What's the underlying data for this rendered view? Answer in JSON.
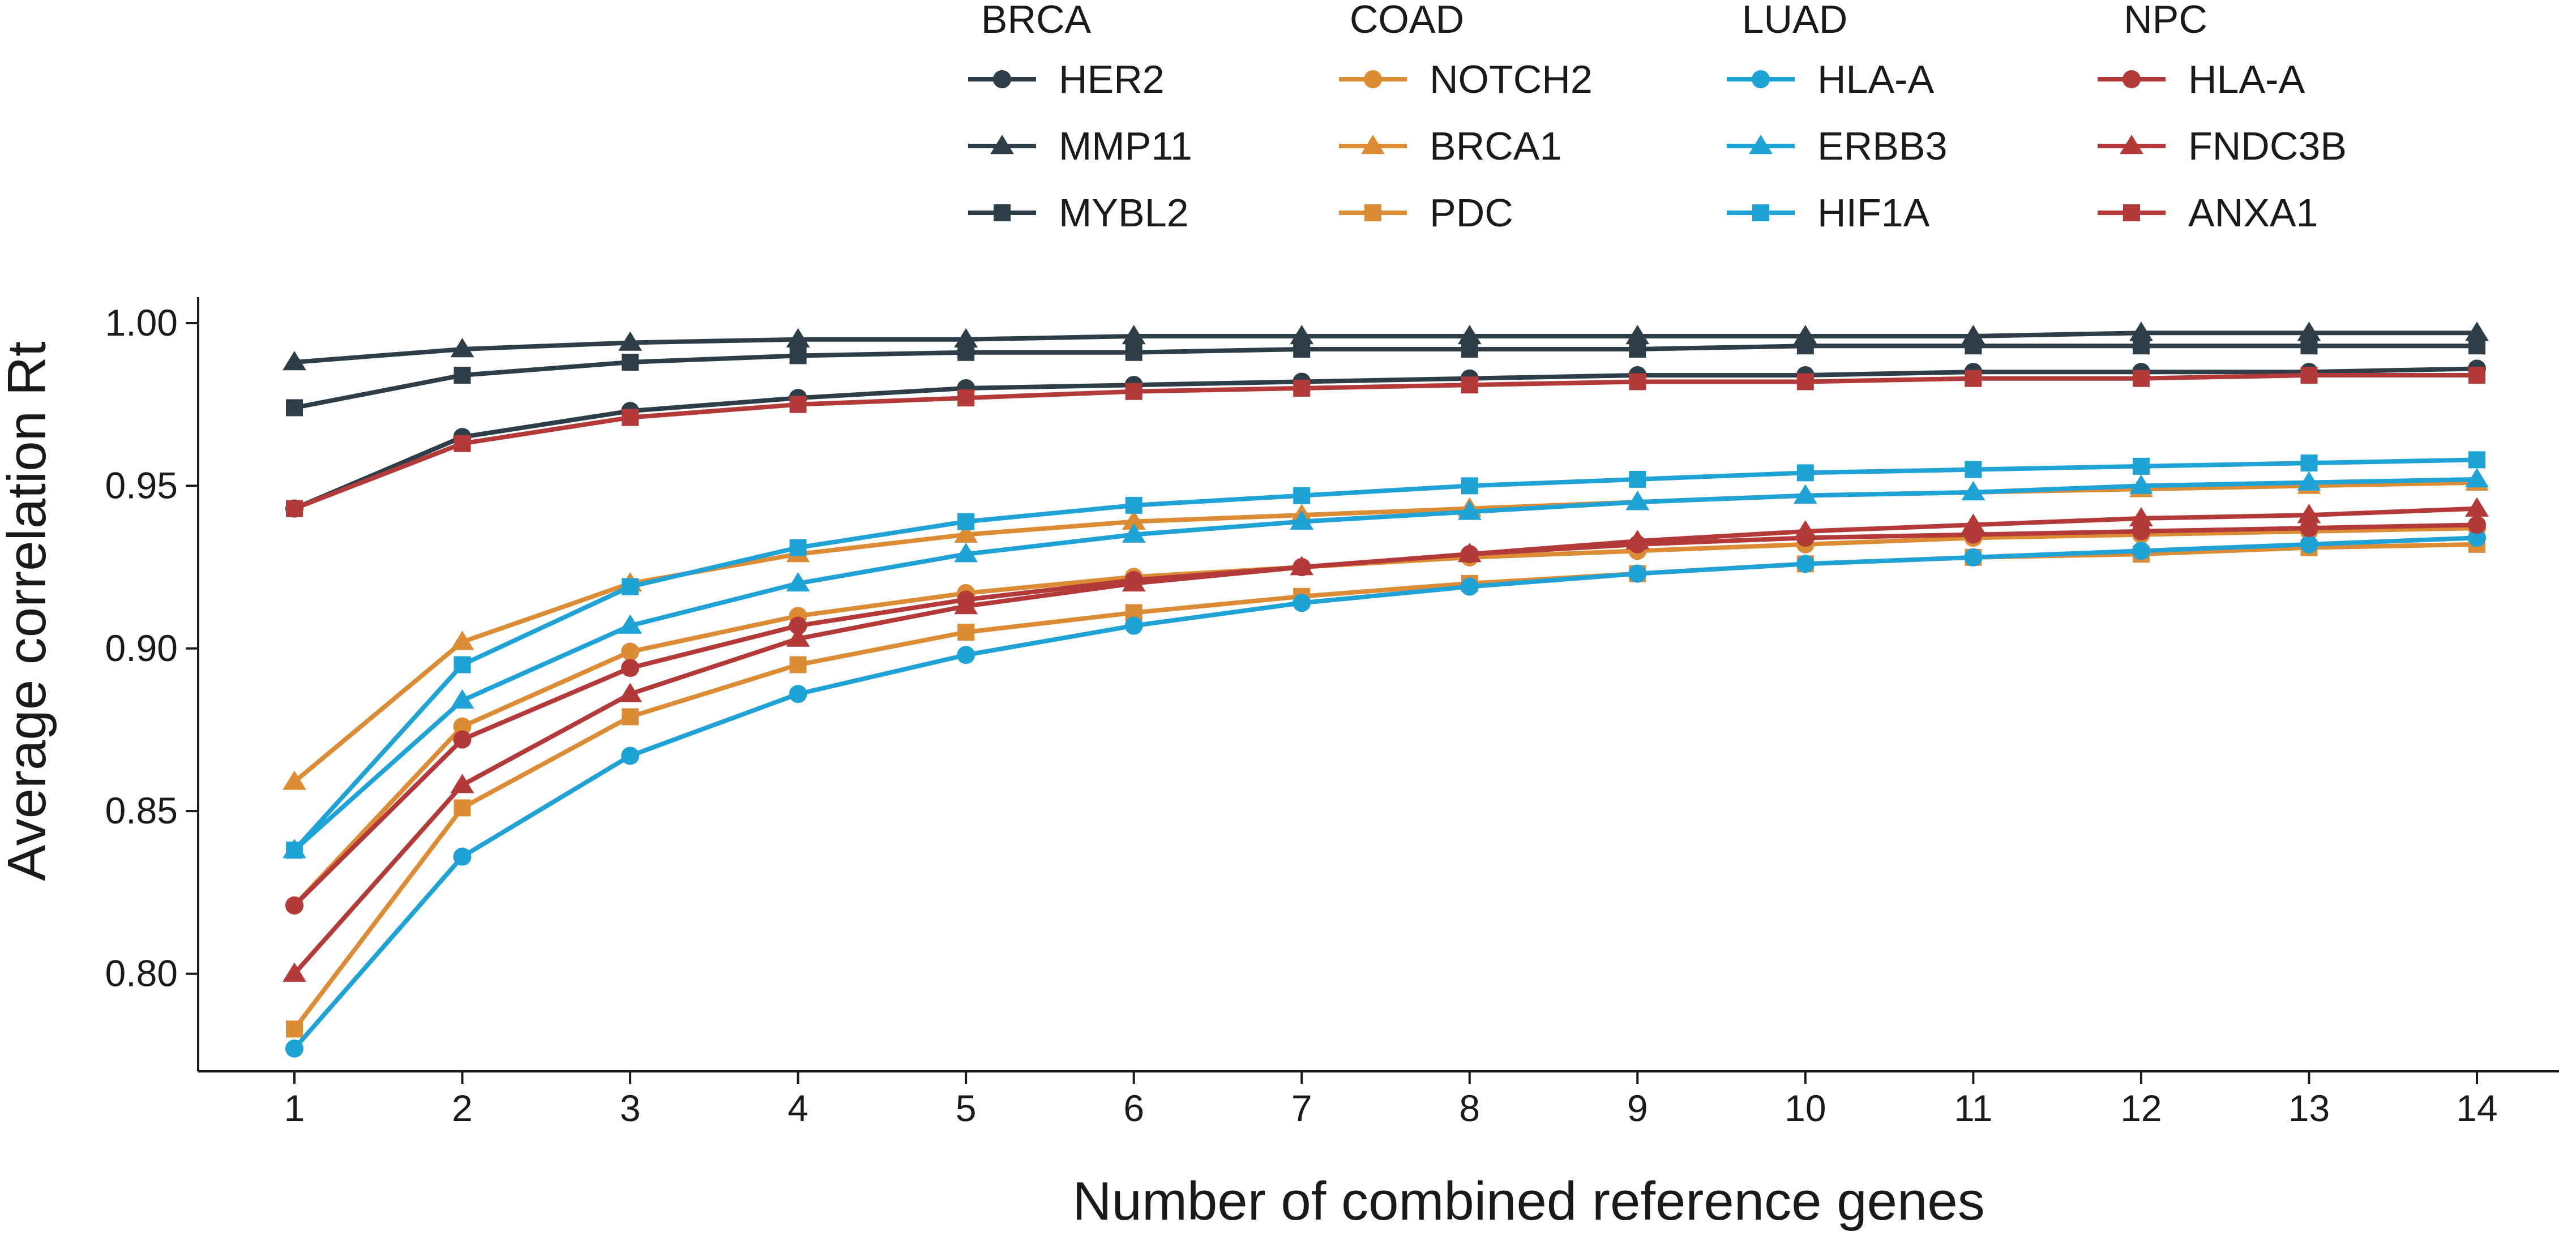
{
  "chart_data": {
    "type": "line",
    "title": "",
    "xlabel": "Number of combined reference genes",
    "ylabel": "Average correlation Rt",
    "x": [
      1,
      2,
      3,
      4,
      5,
      6,
      7,
      8,
      9,
      10,
      11,
      12,
      13,
      14
    ],
    "xticks": [
      "1",
      "2",
      "3",
      "4",
      "5",
      "6",
      "7",
      "8",
      "9",
      "10",
      "11",
      "12",
      "13",
      "14"
    ],
    "ylim": [
      0.77,
      1.008
    ],
    "yticks": [
      {
        "value": 0.8,
        "label": "0.80"
      },
      {
        "value": 0.85,
        "label": "0.85"
      },
      {
        "value": 0.9,
        "label": "0.90"
      },
      {
        "value": 0.95,
        "label": "0.95"
      },
      {
        "value": 1.0,
        "label": "1.00"
      }
    ],
    "grid": false,
    "legend_position": "top",
    "legend_groups": [
      {
        "title": "BRCA",
        "color": "#2d3e48",
        "entries": [
          {
            "name": "HER2",
            "marker": "circle"
          },
          {
            "name": "MMP11",
            "marker": "triangle"
          },
          {
            "name": "MYBL2",
            "marker": "square"
          }
        ]
      },
      {
        "title": "COAD",
        "color": "#dc8c34",
        "entries": [
          {
            "name": "NOTCH2",
            "marker": "circle"
          },
          {
            "name": "BRCA1",
            "marker": "triangle"
          },
          {
            "name": "PDC",
            "marker": "square"
          }
        ]
      },
      {
        "title": "LUAD",
        "color": "#1fa2d6",
        "entries": [
          {
            "name": "HLA-A",
            "marker": "circle"
          },
          {
            "name": "ERBB3",
            "marker": "triangle"
          },
          {
            "name": "HIF1A",
            "marker": "square"
          }
        ]
      },
      {
        "title": "NPC",
        "color": "#b43a3a",
        "entries": [
          {
            "name": "HLA-A",
            "marker": "circle"
          },
          {
            "name": "FNDC3B",
            "marker": "triangle"
          },
          {
            "name": "ANXA1",
            "marker": "square"
          }
        ]
      }
    ],
    "series": [
      {
        "group": "BRCA",
        "name": "HER2",
        "color": "#2d3e48",
        "marker": "circle",
        "values": [
          0.943,
          0.965,
          0.973,
          0.977,
          0.98,
          0.981,
          0.982,
          0.983,
          0.984,
          0.984,
          0.985,
          0.985,
          0.985,
          0.986
        ]
      },
      {
        "group": "BRCA",
        "name": "MMP11",
        "color": "#2d3e48",
        "marker": "triangle",
        "values": [
          0.988,
          0.992,
          0.994,
          0.995,
          0.995,
          0.996,
          0.996,
          0.996,
          0.996,
          0.996,
          0.996,
          0.997,
          0.997,
          0.997
        ]
      },
      {
        "group": "BRCA",
        "name": "MYBL2",
        "color": "#2d3e48",
        "marker": "square",
        "values": [
          0.974,
          0.984,
          0.988,
          0.99,
          0.991,
          0.991,
          0.992,
          0.992,
          0.992,
          0.993,
          0.993,
          0.993,
          0.993,
          0.993
        ]
      },
      {
        "group": "COAD",
        "name": "NOTCH2",
        "color": "#dc8c34",
        "marker": "circle",
        "values": [
          0.821,
          0.876,
          0.899,
          0.91,
          0.917,
          0.922,
          0.925,
          0.928,
          0.93,
          0.932,
          0.934,
          0.935,
          0.936,
          0.937
        ]
      },
      {
        "group": "COAD",
        "name": "BRCA1",
        "color": "#dc8c34",
        "marker": "triangle",
        "values": [
          0.859,
          0.902,
          0.92,
          0.929,
          0.935,
          0.939,
          0.941,
          0.943,
          0.945,
          0.947,
          0.948,
          0.949,
          0.95,
          0.951
        ]
      },
      {
        "group": "COAD",
        "name": "PDC",
        "color": "#dc8c34",
        "marker": "square",
        "values": [
          0.783,
          0.851,
          0.879,
          0.895,
          0.905,
          0.911,
          0.916,
          0.92,
          0.923,
          0.926,
          0.928,
          0.929,
          0.931,
          0.932
        ]
      },
      {
        "group": "LUAD",
        "name": "HLA-A",
        "color": "#1fa2d6",
        "marker": "circle",
        "values": [
          0.777,
          0.836,
          0.867,
          0.886,
          0.898,
          0.907,
          0.914,
          0.919,
          0.923,
          0.926,
          0.928,
          0.93,
          0.932,
          0.934
        ]
      },
      {
        "group": "LUAD",
        "name": "ERBB3",
        "color": "#1fa2d6",
        "marker": "triangle",
        "values": [
          0.838,
          0.884,
          0.907,
          0.92,
          0.929,
          0.935,
          0.939,
          0.942,
          0.945,
          0.947,
          0.948,
          0.95,
          0.951,
          0.952
        ]
      },
      {
        "group": "LUAD",
        "name": "HIF1A",
        "color": "#1fa2d6",
        "marker": "square",
        "values": [
          0.838,
          0.895,
          0.919,
          0.931,
          0.939,
          0.944,
          0.947,
          0.95,
          0.952,
          0.954,
          0.955,
          0.956,
          0.957,
          0.958
        ]
      },
      {
        "group": "NPC",
        "name": "HLA-A",
        "color": "#b43a3a",
        "marker": "circle",
        "values": [
          0.821,
          0.872,
          0.894,
          0.907,
          0.915,
          0.921,
          0.925,
          0.929,
          0.932,
          0.934,
          0.935,
          0.936,
          0.937,
          0.938
        ]
      },
      {
        "group": "NPC",
        "name": "FNDC3B",
        "color": "#b43a3a",
        "marker": "triangle",
        "values": [
          0.8,
          0.858,
          0.886,
          0.903,
          0.913,
          0.92,
          0.925,
          0.929,
          0.933,
          0.936,
          0.938,
          0.94,
          0.941,
          0.943
        ]
      },
      {
        "group": "NPC",
        "name": "ANXA1",
        "color": "#b43a3a",
        "marker": "square",
        "values": [
          0.943,
          0.963,
          0.971,
          0.975,
          0.977,
          0.979,
          0.98,
          0.981,
          0.982,
          0.982,
          0.983,
          0.983,
          0.984,
          0.984
        ]
      }
    ]
  }
}
